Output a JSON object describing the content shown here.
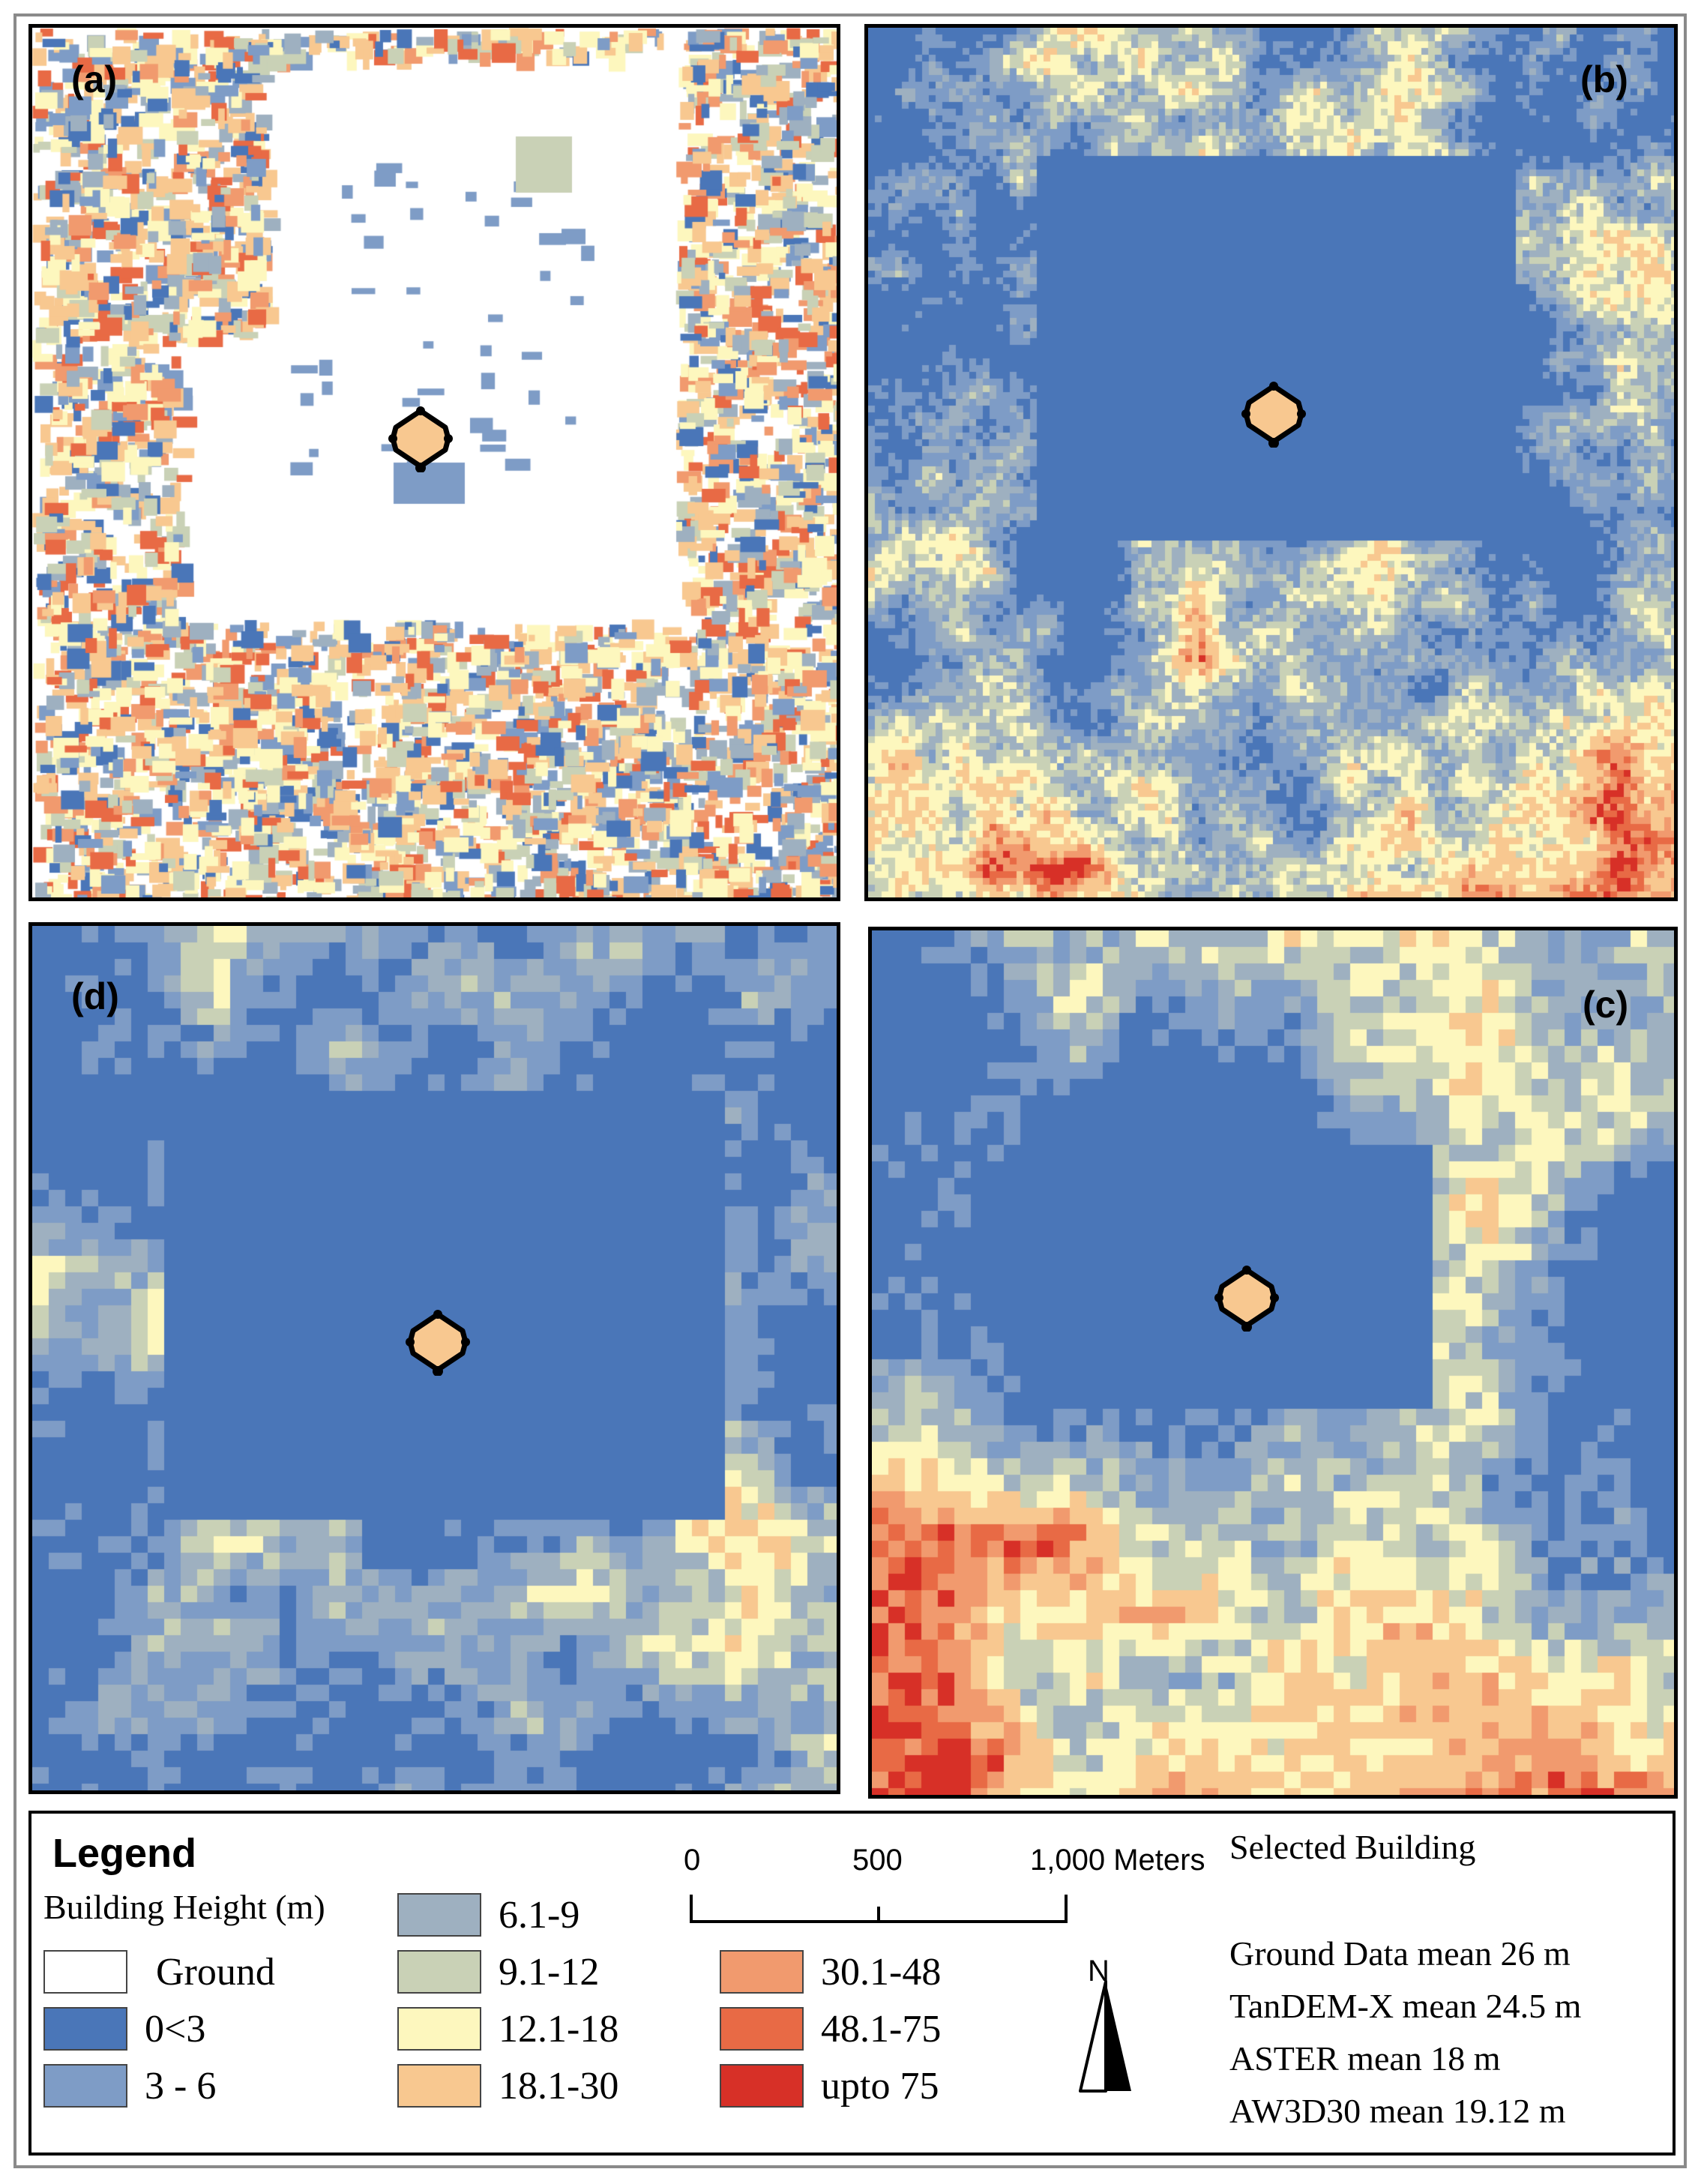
{
  "panels": [
    {
      "id": "a",
      "label": "(a)",
      "style": "ground"
    },
    {
      "id": "b",
      "label": "(b)",
      "style": "tandem"
    },
    {
      "id": "d",
      "label": "(d)",
      "style": "aw3d"
    },
    {
      "id": "c",
      "label": "(c)",
      "style": "aster"
    }
  ],
  "legend": {
    "title": "Legend",
    "subtitle": "Building Height (m)",
    "classes": [
      {
        "label": "Ground",
        "color": "#ffffff"
      },
      {
        "label": "0<3",
        "color": "#4a76b8"
      },
      {
        "label": "3 - 6",
        "color": "#7e9cc6"
      },
      {
        "label": "6.1-9",
        "color": "#9eb0c0"
      },
      {
        "label": "9.1-12",
        "color": "#c9d1b6"
      },
      {
        "label": "12.1-18",
        "color": "#fdf7be"
      },
      {
        "label": "18.1-30",
        "color": "#f8c890"
      },
      {
        "label": "30.1-48",
        "color": "#f19a6e"
      },
      {
        "label": "48.1-75",
        "color": "#e86a45"
      },
      {
        "label": "upto 75",
        "color": "#d73027"
      }
    ]
  },
  "scale_bar": {
    "labels": [
      "0",
      "500",
      "1,000 Meters"
    ]
  },
  "north_arrow": {
    "label": "N"
  },
  "selected_building": {
    "title": "Selected Building",
    "stats": [
      "Ground Data mean 26 m",
      "TanDEM-X mean 24.5 m",
      "ASTER mean 18 m",
      "AW3D30 mean 19.12 m"
    ]
  }
}
